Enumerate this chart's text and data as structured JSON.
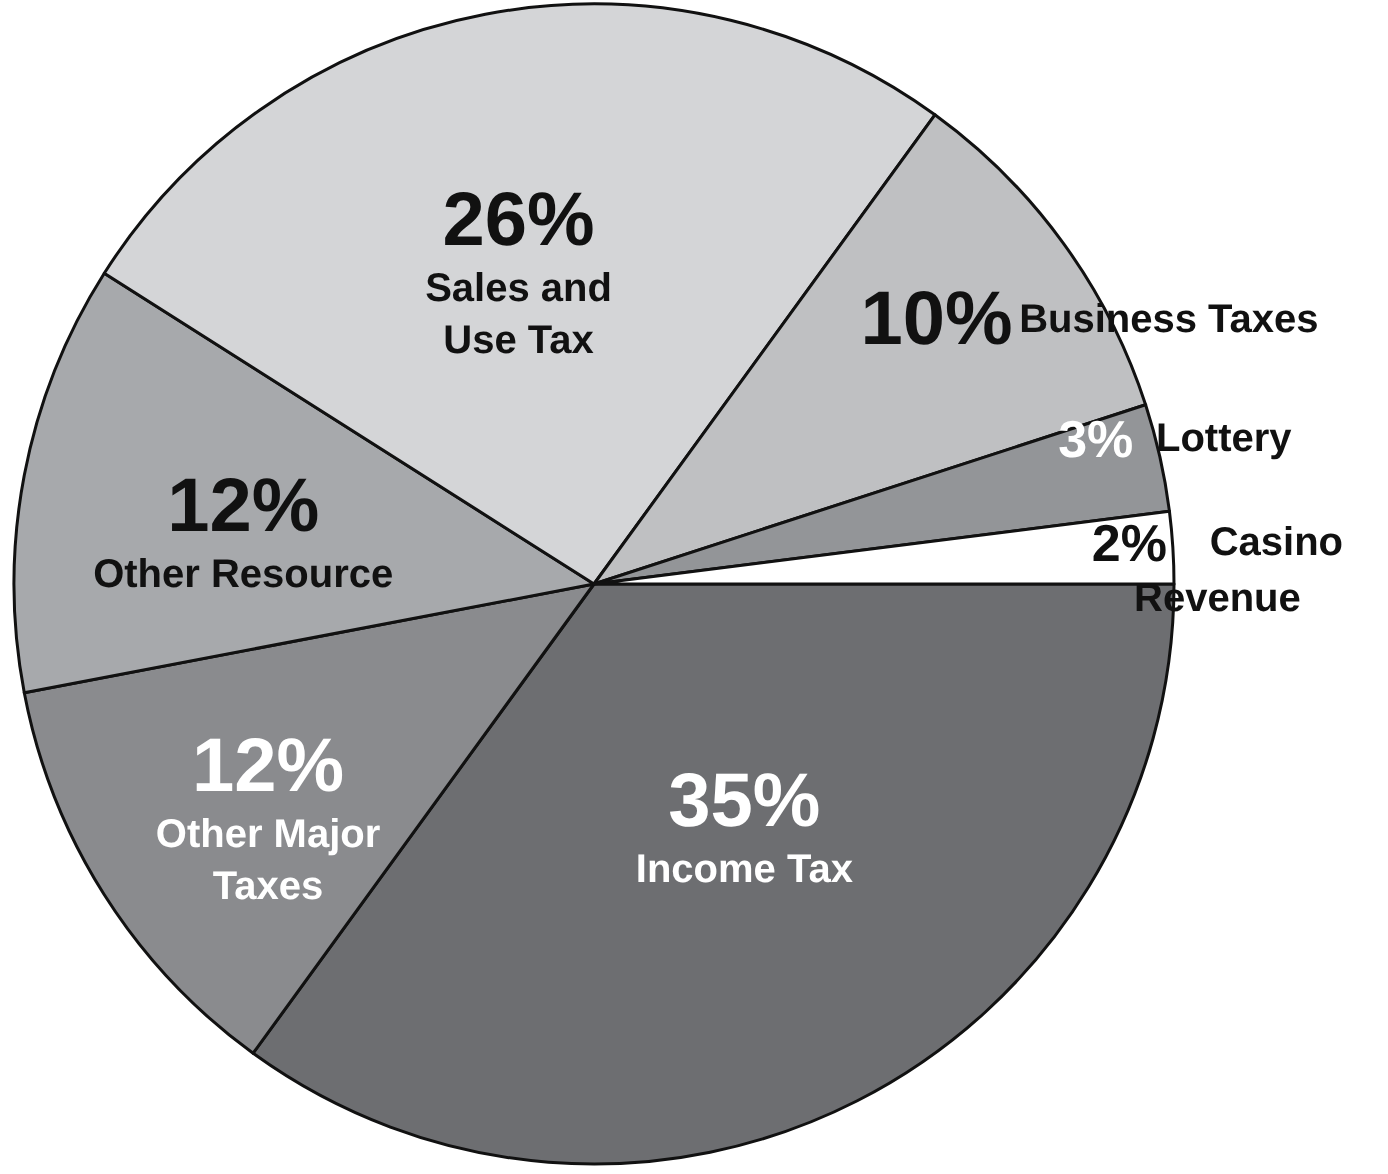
{
  "chart_data": {
    "type": "pie",
    "categories": [
      "Income Tax",
      "Other Major Taxes",
      "Other Resource",
      "Sales and Use Tax",
      "Business Taxes",
      "Lottery",
      "Casino Revenue"
    ],
    "values": [
      35,
      12,
      12,
      26,
      10,
      3,
      2
    ],
    "value_labels": [
      "35%",
      "12%",
      "12%",
      "26%",
      "10%",
      "3%",
      "2%"
    ],
    "colors": [
      "#6d6e71",
      "#8a8b8e",
      "#a7a9ac",
      "#d4d5d7",
      "#bfc0c2",
      "#939598",
      "#ffffff"
    ]
  }
}
